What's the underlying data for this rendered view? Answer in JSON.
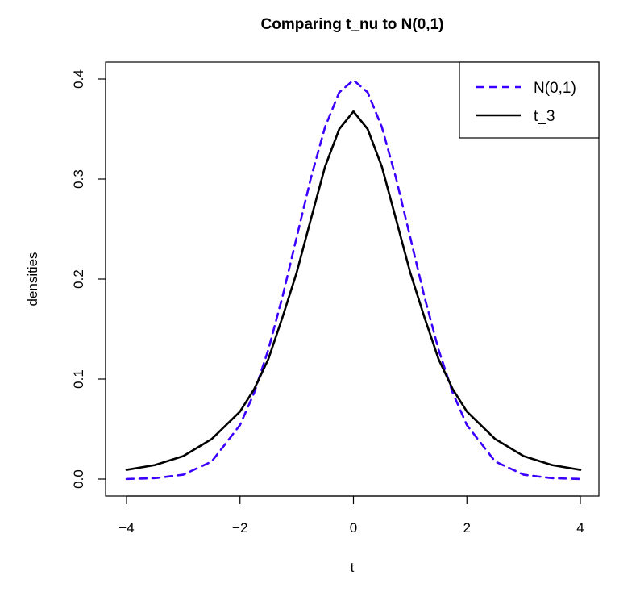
{
  "chart_data": {
    "type": "line",
    "title": "Comparing t_nu to N(0,1)",
    "xlabel": "t",
    "ylabel": "densities",
    "xlim": [
      -4,
      4
    ],
    "ylim": [
      0,
      0.4
    ],
    "x_ticks": [
      -4,
      -2,
      0,
      2,
      4
    ],
    "x_tick_labels": [
      "−4",
      "−2",
      "0",
      "2",
      "4"
    ],
    "y_ticks": [
      0.0,
      0.1,
      0.2,
      0.3,
      0.4
    ],
    "y_tick_labels": [
      "0.0",
      "0.1",
      "0.2",
      "0.3",
      "0.4"
    ],
    "grid": false,
    "legend_position": "top-right",
    "x": [
      -4,
      -3.5,
      -3,
      -2.5,
      -2,
      -1.75,
      -1.5,
      -1.25,
      -1,
      -0.75,
      -0.5,
      -0.25,
      0,
      0.25,
      0.5,
      0.75,
      1,
      1.25,
      1.5,
      1.75,
      2,
      2.5,
      3,
      3.5,
      4
    ],
    "series": [
      {
        "name": "N(0,1)",
        "color": "#3b00ff",
        "line_style": "dashed",
        "values": [
          0.0001,
          0.0009,
          0.0044,
          0.0175,
          0.054,
          0.0863,
          0.1295,
          0.1826,
          0.242,
          0.3011,
          0.3521,
          0.3867,
          0.3989,
          0.3867,
          0.3521,
          0.3011,
          0.242,
          0.1826,
          0.1295,
          0.0863,
          0.054,
          0.0175,
          0.0044,
          0.0009,
          0.0001
        ]
      },
      {
        "name": "t_3",
        "color": "#000000",
        "line_style": "solid",
        "values": [
          0.0092,
          0.014,
          0.023,
          0.04,
          0.0675,
          0.09,
          0.12,
          0.162,
          0.2067,
          0.26,
          0.3125,
          0.35,
          0.3676,
          0.35,
          0.3125,
          0.26,
          0.2067,
          0.162,
          0.12,
          0.09,
          0.0675,
          0.04,
          0.023,
          0.014,
          0.0092
        ]
      }
    ]
  }
}
